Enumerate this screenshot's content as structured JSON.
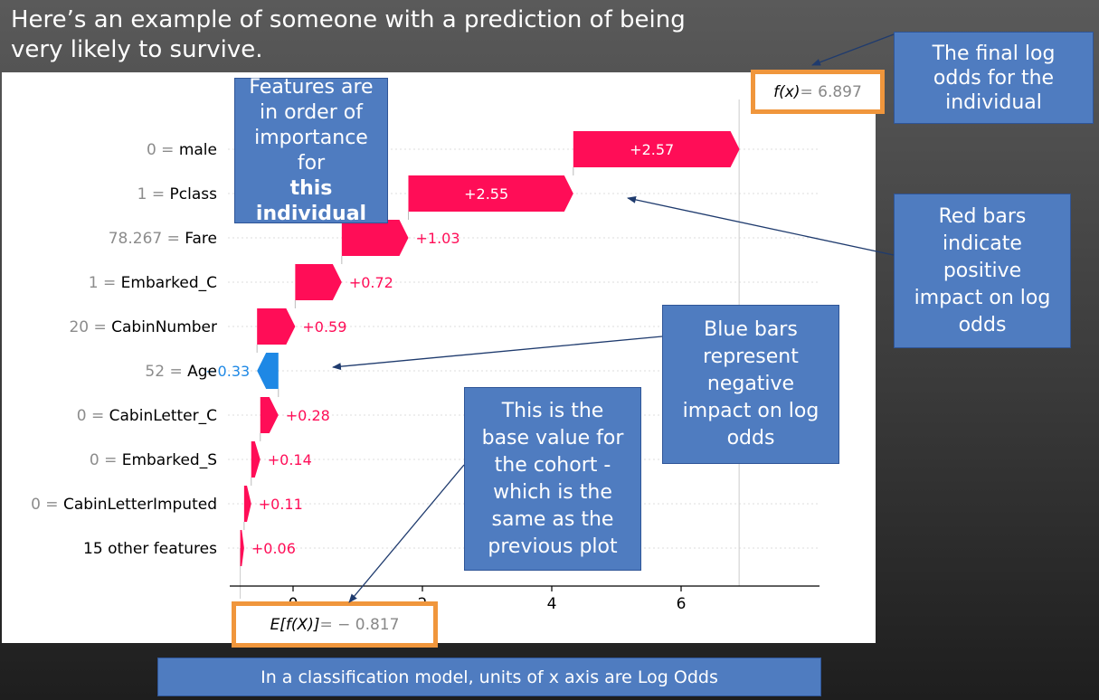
{
  "slide": {
    "title": "Here’s an example of someone with a prediction of being very likely to survive.",
    "footer": "In a classification model, units of x axis are Log Odds"
  },
  "callouts": {
    "order": [
      "Features are",
      "in order of",
      "importance",
      "for ",
      "this",
      "individual"
    ],
    "final": [
      "The final log",
      "odds for the",
      "individual"
    ],
    "red": [
      "Red bars",
      "indicate",
      "positive",
      "impact on log",
      "odds"
    ],
    "blue": [
      "Blue bars",
      "represent",
      "negative",
      "impact on log",
      "odds"
    ],
    "base": [
      "This is the",
      "base value for",
      "the cohort -",
      "which is the",
      "same as the",
      "previous plot"
    ]
  },
  "fx_label": {
    "name": "f(x)",
    "eq": " = 6.897"
  },
  "efx_label": {
    "name": "E[f(X)]",
    "eq": " = − 0.817"
  },
  "colors": {
    "positive": "#ff0d57",
    "negative": "#1e88e5",
    "callout": "#4f7cc0",
    "highlight": "#f0963c"
  },
  "chart_data": {
    "type": "waterfall",
    "base_value": -0.817,
    "final_value": 6.897,
    "xlim": [
      -1.0,
      8.3
    ],
    "x_ticks": [
      0,
      2,
      4,
      6
    ],
    "features": [
      {
        "label": "0 = male",
        "contribution": 2.57,
        "text": "+2.57"
      },
      {
        "label": "1 = Pclass",
        "contribution": 2.55,
        "text": "+2.55"
      },
      {
        "label": "78.267 = Fare",
        "contribution": 1.03,
        "text": "+1.03"
      },
      {
        "label": "1 = Embarked_C",
        "contribution": 0.72,
        "text": "+0.72"
      },
      {
        "label": "20 = CabinNumber",
        "contribution": 0.59,
        "text": "+0.59"
      },
      {
        "label": "52 = Age",
        "contribution": -0.33,
        "text": "−0.33"
      },
      {
        "label": "0 = CabinLetter_C",
        "contribution": 0.28,
        "text": "+0.28"
      },
      {
        "label": "0 = Embarked_S",
        "contribution": 0.14,
        "text": "+0.14"
      },
      {
        "label": "0 = CabinLetterImputed",
        "contribution": 0.11,
        "text": "+0.11"
      },
      {
        "label": "15 other features",
        "contribution": 0.06,
        "text": "+0.06"
      }
    ]
  }
}
